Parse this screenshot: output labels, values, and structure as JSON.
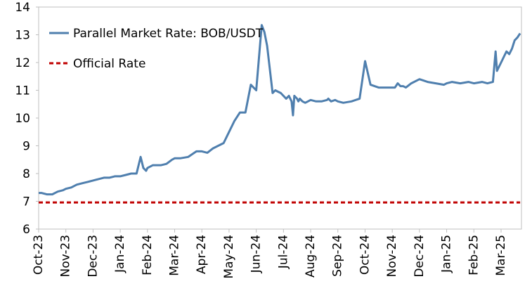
{
  "chart_data": {
    "type": "line",
    "ylim": [
      6,
      14
    ],
    "yticks": [
      6,
      7,
      8,
      9,
      10,
      11,
      12,
      13,
      14
    ],
    "x_tick_labels": [
      "Oct-23",
      "Nov-23",
      "Dec-23",
      "Jan-24",
      "Feb-24",
      "Mar-24",
      "Apr-24",
      "May-24",
      "Jun-24",
      "Jul-24",
      "Aug-24",
      "Sep-24",
      "Oct-24",
      "Nov-24",
      "Dec-24",
      "Jan-25",
      "Feb-25",
      "Mar-25"
    ],
    "grid": false,
    "legend_position": "top-left",
    "series": [
      {
        "name": "Parallel Market Rate: BOB/USDT",
        "color": "#4f7fae",
        "style": "solid",
        "x": [
          0.0,
          0.1,
          0.3,
          0.5,
          0.7,
          0.9,
          1.0,
          1.2,
          1.4,
          1.6,
          1.8,
          2.0,
          2.2,
          2.4,
          2.6,
          2.8,
          3.0,
          3.2,
          3.4,
          3.6,
          3.75,
          3.85,
          3.95,
          4.0,
          4.1,
          4.2,
          4.3,
          4.5,
          4.7,
          4.9,
          5.0,
          5.2,
          5.5,
          5.8,
          6.0,
          6.2,
          6.4,
          6.6,
          6.8,
          7.0,
          7.2,
          7.4,
          7.6,
          7.8,
          8.0,
          8.2,
          8.3,
          8.4,
          8.6,
          8.7,
          8.8,
          8.9,
          9.0,
          9.1,
          9.2,
          9.3,
          9.35,
          9.4,
          9.5,
          9.55,
          9.6,
          9.7,
          9.8,
          9.9,
          10.0,
          10.2,
          10.4,
          10.6,
          10.65,
          10.75,
          10.9,
          11.0,
          11.2,
          11.5,
          11.8,
          12.0,
          12.2,
          12.5,
          12.8,
          13.0,
          13.1,
          13.2,
          13.3,
          13.4,
          13.5,
          13.7,
          14.0,
          14.3,
          14.6,
          14.9,
          15.0,
          15.2,
          15.5,
          15.8,
          16.0,
          16.3,
          16.5,
          16.7,
          16.8,
          16.85,
          16.9,
          17.0,
          17.1,
          17.2,
          17.3,
          17.4,
          17.5,
          17.6,
          17.7
        ],
        "values": [
          7.3,
          7.3,
          7.25,
          7.25,
          7.35,
          7.4,
          7.45,
          7.5,
          7.6,
          7.65,
          7.7,
          7.75,
          7.8,
          7.85,
          7.85,
          7.9,
          7.9,
          7.95,
          8.0,
          8.0,
          8.6,
          8.2,
          8.1,
          8.2,
          8.25,
          8.3,
          8.3,
          8.3,
          8.35,
          8.5,
          8.55,
          8.55,
          8.6,
          8.8,
          8.8,
          8.75,
          8.9,
          9.0,
          9.1,
          9.5,
          9.9,
          10.2,
          10.2,
          11.2,
          11.0,
          13.35,
          13.1,
          12.6,
          10.9,
          11.0,
          10.95,
          10.9,
          10.8,
          10.7,
          10.8,
          10.6,
          10.1,
          10.8,
          10.7,
          10.6,
          10.7,
          10.6,
          10.55,
          10.6,
          10.65,
          10.6,
          10.6,
          10.65,
          10.7,
          10.6,
          10.65,
          10.6,
          10.55,
          10.6,
          10.7,
          12.05,
          11.2,
          11.1,
          11.1,
          11.1,
          11.1,
          11.25,
          11.15,
          11.15,
          11.1,
          11.25,
          11.4,
          11.3,
          11.25,
          11.2,
          11.25,
          11.3,
          11.25,
          11.3,
          11.25,
          11.3,
          11.25,
          11.3,
          12.4,
          11.7,
          11.8,
          12.0,
          12.2,
          12.4,
          12.3,
          12.5,
          12.8,
          12.9,
          13.05
        ]
      },
      {
        "name": "Official Rate",
        "color": "#c00000",
        "style": "dashed",
        "x": [
          0,
          17.7
        ],
        "values": [
          6.96,
          6.96
        ]
      }
    ]
  }
}
